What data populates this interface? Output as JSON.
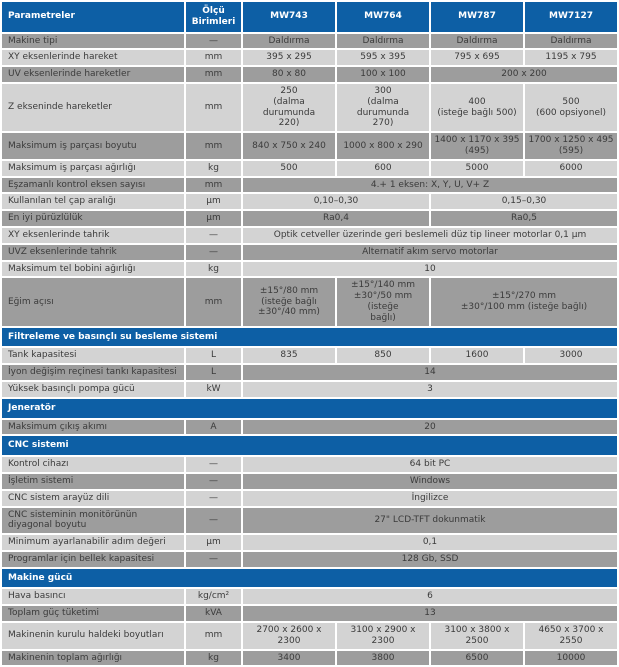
{
  "colors": {
    "header_blue": "#0d5fa5",
    "row_dark": "#9d9d9d",
    "row_light": "#d3d3d3",
    "text": "#3b3b3b",
    "header_text": "#ffffff"
  },
  "header": {
    "param_label": "Parametreler",
    "unit_label": "Ölçü Birimleri",
    "models": [
      "MW743",
      "MW764",
      "MW787",
      "MW7127"
    ]
  },
  "rows": [
    {
      "shade": "dark",
      "label": "Makine tipi",
      "unit": "—",
      "cells": [
        {
          "v": "Daldırma"
        },
        {
          "v": "Daldırma"
        },
        {
          "v": "Daldırma"
        },
        {
          "v": "Daldırma"
        }
      ]
    },
    {
      "shade": "light",
      "label": "XY eksenlerinde hareket",
      "unit": "mm",
      "cells": [
        {
          "v": "395 x 295"
        },
        {
          "v": "595 x 395"
        },
        {
          "v": "795 x 695"
        },
        {
          "v": "1195 x 795"
        }
      ]
    },
    {
      "shade": "dark",
      "label": "UV eksenlerinde hareketler",
      "unit": "mm",
      "cells": [
        {
          "v": "80 x 80"
        },
        {
          "v": "100 x 100"
        },
        {
          "v": "200 x 200",
          "span": 2
        }
      ]
    },
    {
      "shade": "light",
      "label": "Z ekseninde hareketler",
      "unit": "mm",
      "cells": [
        {
          "v": "250\n(dalma durumunda\n220)"
        },
        {
          "v": "300\n(dalma durumunda\n270)"
        },
        {
          "v": "400\n(isteğe bağlı 500)"
        },
        {
          "v": "500\n(600 opsiyonel)"
        }
      ]
    },
    {
      "shade": "dark",
      "label": "Maksimum iş parçası boyutu",
      "unit": "mm",
      "cells": [
        {
          "v": "840 x 750 x 240"
        },
        {
          "v": "1000 x 800 x 290"
        },
        {
          "v": "1400 x 1170 x 395\n(495)"
        },
        {
          "v": "1700 x 1250 x 495\n(595)"
        }
      ]
    },
    {
      "shade": "light",
      "label": "Maksimum iş parçası ağırlığı",
      "unit": "kg",
      "cells": [
        {
          "v": "500"
        },
        {
          "v": "600"
        },
        {
          "v": "5000"
        },
        {
          "v": "6000"
        }
      ]
    },
    {
      "shade": "dark",
      "label": "Eşzamanlı kontrol eksen sayısı",
      "unit": "mm",
      "cells": [
        {
          "v": "4.+ 1 eksen: X, Y, U, V+ Z",
          "span": 4
        }
      ]
    },
    {
      "shade": "light",
      "label": "Kullanılan tel çap aralığı",
      "unit": "µm",
      "cells": [
        {
          "v": "0,10–0,30",
          "span": 2
        },
        {
          "v": "0,15–0,30",
          "span": 2
        }
      ]
    },
    {
      "shade": "dark",
      "label": "En iyi pürüzlülük",
      "unit": "µm",
      "cells": [
        {
          "v": "Ra0,4",
          "span": 2
        },
        {
          "v": "Ra0,5",
          "span": 2
        }
      ]
    },
    {
      "shade": "light",
      "label": "XY eksenlerinde tahrik",
      "unit": "—",
      "cells": [
        {
          "v": "Optik cetveller üzerinde geri beslemeli düz tip lineer motorlar 0,1 µm",
          "span": 4
        }
      ]
    },
    {
      "shade": "dark",
      "label": "UVZ eksenlerinde tahrik",
      "unit": "—",
      "cells": [
        {
          "v": "Alternatif akım servo motorlar",
          "span": 4
        }
      ]
    },
    {
      "shade": "light",
      "label": "Maksimum tel bobini ağırlığı",
      "unit": "kg",
      "cells": [
        {
          "v": "10",
          "span": 4
        }
      ]
    },
    {
      "shade": "dark",
      "label": "Eğim açısı",
      "unit": "mm",
      "cells": [
        {
          "v": "±15°/80 mm\n(isteğe bağlı\n±30°/40 mm)"
        },
        {
          "v": "±15°/140 mm\n±30°/50 mm (isteğe\nbağlı)"
        },
        {
          "v": "±15°/270 mm\n±30°/100 mm (isteğe bağlı)",
          "span": 2
        }
      ]
    },
    {
      "section": "Filtreleme ve basınçlı su besleme sistemi"
    },
    {
      "shade": "light",
      "label": "Tank kapasitesi",
      "unit": "L",
      "cells": [
        {
          "v": "835"
        },
        {
          "v": "850"
        },
        {
          "v": "1600"
        },
        {
          "v": "3000"
        }
      ]
    },
    {
      "shade": "dark",
      "label": "İyon değişim reçinesi tankı kapasitesi",
      "unit": "L",
      "cells": [
        {
          "v": "14",
          "span": 4
        }
      ]
    },
    {
      "shade": "light",
      "label": "Yüksek basınçlı pompa gücü",
      "unit": "kW",
      "cells": [
        {
          "v": "3",
          "span": 4
        }
      ]
    },
    {
      "section": "Jeneratör"
    },
    {
      "shade": "dark",
      "label": "Maksimum çıkış akımı",
      "unit": "A",
      "cells": [
        {
          "v": "20",
          "span": 4
        }
      ]
    },
    {
      "section": "CNC sistemi"
    },
    {
      "shade": "light",
      "label": "Kontrol cihazı",
      "unit": "—",
      "cells": [
        {
          "v": "64 bit PC",
          "span": 4
        }
      ]
    },
    {
      "shade": "dark",
      "label": "İşletim sistemi",
      "unit": "—",
      "cells": [
        {
          "v": "Windows",
          "span": 4
        }
      ]
    },
    {
      "shade": "light",
      "label": "CNC sistem arayüz dili",
      "unit": "—",
      "cells": [
        {
          "v": "İngilizce",
          "span": 4
        }
      ]
    },
    {
      "shade": "dark",
      "label": "CNC sisteminin monitörünün diyagonal boyutu",
      "unit": "—",
      "cells": [
        {
          "v": "27\" LCD-TFT dokunmatik",
          "span": 4
        }
      ]
    },
    {
      "shade": "light",
      "label": "Minimum ayarlanabilir adım değeri",
      "unit": "µm",
      "cells": [
        {
          "v": "0,1",
          "span": 4
        }
      ]
    },
    {
      "shade": "dark",
      "label": "Programlar için bellek kapasitesi",
      "unit": "—",
      "cells": [
        {
          "v": "128 Gb, SSD",
          "span": 4
        }
      ]
    },
    {
      "section": "Makine gücü"
    },
    {
      "shade": "light",
      "label": "Hava basıncı",
      "unit": "kg/cm²",
      "cells": [
        {
          "v": "6",
          "span": 4
        }
      ]
    },
    {
      "shade": "dark",
      "label": "Toplam güç tüketimi",
      "unit": "kVA",
      "cells": [
        {
          "v": "13",
          "span": 4
        }
      ]
    },
    {
      "shade": "light",
      "label": "Makinenin kurulu haldeki boyutları",
      "unit": "mm",
      "cells": [
        {
          "v": "2700 x 2600 x\n2300"
        },
        {
          "v": "3100 x 2900 x 2300"
        },
        {
          "v": "3100 x 3800 x 2500"
        },
        {
          "v": "4650 x 3700 x 2550"
        }
      ]
    },
    {
      "shade": "dark",
      "label": "Makinenin toplam ağırlığı",
      "unit": "kg",
      "cells": [
        {
          "v": "3400"
        },
        {
          "v": "3800"
        },
        {
          "v": "6500"
        },
        {
          "v": "10000"
        }
      ]
    }
  ]
}
